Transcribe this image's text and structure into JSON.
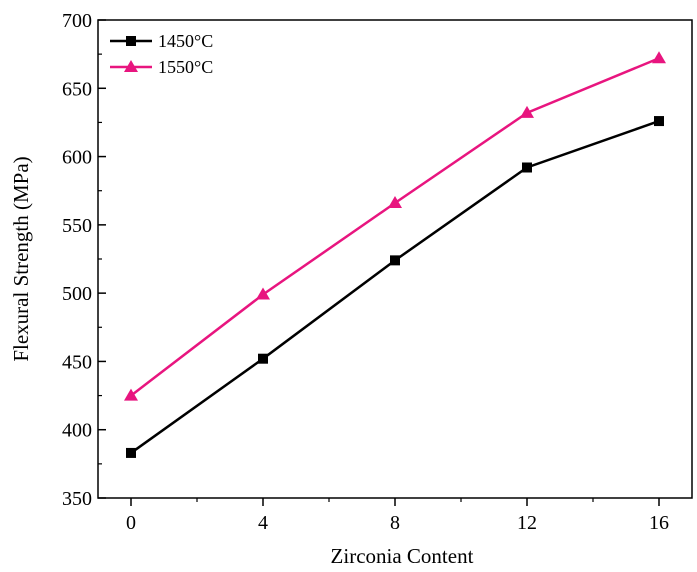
{
  "chart_data": {
    "type": "line",
    "title": "",
    "xlabel": "Zirconia Content",
    "ylabel": "Flexural Strength (MPa)",
    "x": [
      0,
      4,
      8,
      12,
      16
    ],
    "xlim": [
      -1,
      17
    ],
    "ylim": [
      350,
      700
    ],
    "xticks": [
      0,
      4,
      8,
      12,
      16
    ],
    "yticks": [
      350,
      400,
      450,
      500,
      550,
      600,
      650,
      700
    ],
    "grid": false,
    "legend_position": "top-left",
    "series": [
      {
        "name": "1450°C",
        "color": "#000000",
        "marker": "square",
        "values": [
          383,
          452,
          524,
          592,
          626
        ]
      },
      {
        "name": "1550°C",
        "color": "#e8157f",
        "marker": "triangle",
        "values": [
          425,
          499,
          566,
          632,
          672
        ]
      }
    ]
  }
}
